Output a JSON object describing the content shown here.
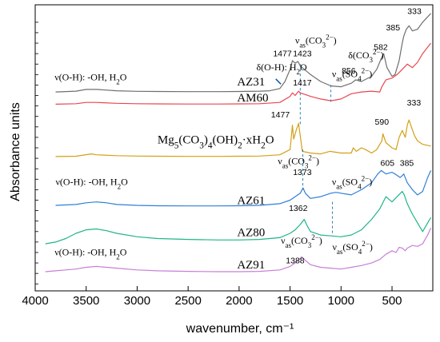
{
  "chart_data": {
    "type": "line",
    "xlabel": "wavenumber, cm⁻¹",
    "ylabel": "Absorbance units",
    "xlim": [
      4000,
      100
    ],
    "x_reversed": true,
    "x_ticks": [
      4000,
      3500,
      3000,
      2500,
      2000,
      1500,
      1000,
      500
    ],
    "y_ticks_labeled": false,
    "grid": false,
    "legend": "none",
    "series": [
      {
        "name": "AZ31",
        "color": "#6e6e6e",
        "x": [
          3800,
          3600,
          3500,
          3400,
          3200,
          3000,
          2800,
          2500,
          2200,
          2000,
          1800,
          1700,
          1600,
          1550,
          1500,
          1477,
          1450,
          1423,
          1400,
          1300,
          1200,
          1100,
          1000,
          900,
          856,
          800,
          700,
          650,
          600,
          582,
          550,
          500,
          470,
          430,
          400,
          385,
          360,
          333,
          300,
          250,
          200,
          120
        ],
        "y": [
          1.0,
          1.05,
          1.15,
          1.15,
          1.07,
          1.04,
          1.03,
          1.02,
          1.02,
          1.03,
          1.05,
          1.07,
          1.2,
          1.6,
          2.3,
          2.8,
          2.65,
          2.75,
          2.5,
          2.0,
          1.6,
          1.35,
          1.3,
          1.5,
          1.7,
          1.6,
          1.9,
          2.3,
          3.0,
          3.2,
          2.4,
          1.9,
          2.0,
          2.8,
          3.8,
          4.2,
          4.6,
          4.8,
          4.5,
          4.6,
          5.0,
          5.5
        ]
      },
      {
        "name": "AM60",
        "color": "#e8474e",
        "x": [
          3800,
          3600,
          3500,
          3400,
          3200,
          3000,
          2800,
          2500,
          2200,
          2000,
          1800,
          1600,
          1500,
          1477,
          1450,
          1417,
          1400,
          1300,
          1200,
          1100,
          1000,
          900,
          800,
          700,
          620,
          600,
          560,
          500,
          450,
          400,
          350,
          300,
          250,
          200,
          120
        ],
        "y": [
          0.3,
          0.33,
          0.4,
          0.4,
          0.35,
          0.33,
          0.32,
          0.31,
          0.31,
          0.32,
          0.33,
          0.4,
          0.75,
          0.95,
          0.8,
          1.05,
          0.95,
          0.75,
          0.6,
          0.5,
          0.6,
          0.9,
          1.0,
          1.05,
          1.0,
          1.3,
          1.7,
          1.8,
          2.0,
          2.3,
          2.6,
          2.4,
          2.7,
          3.2,
          3.8
        ]
      },
      {
        "name": "Mg5(CO3)4(OH)2·xH2O",
        "color": "#d4a017",
        "x": [
          3800,
          3600,
          3450,
          3400,
          3200,
          3000,
          2800,
          2500,
          2200,
          2000,
          1800,
          1600,
          1500,
          1490,
          1477,
          1465,
          1440,
          1417,
          1400,
          1380,
          1300,
          1200,
          1110,
          1000,
          900,
          880,
          850,
          800,
          760,
          700,
          650,
          600,
          590,
          560,
          500,
          460,
          430,
          400,
          370,
          350,
          333,
          310,
          280,
          250,
          200,
          120
        ],
        "y": [
          -2.7,
          -2.68,
          -2.55,
          -2.6,
          -2.65,
          -2.67,
          -2.68,
          -2.69,
          -2.69,
          -2.68,
          -2.67,
          -2.6,
          -2.3,
          -1.7,
          -0.9,
          -1.7,
          -1.2,
          -0.8,
          -1.5,
          -2.4,
          -2.5,
          -2.55,
          -2.4,
          -2.5,
          -2.5,
          -2.2,
          -2.4,
          -2.2,
          -2.3,
          -2.5,
          -2.3,
          -1.8,
          -1.4,
          -1.9,
          -2.2,
          -2.3,
          -1.6,
          -1.2,
          -1.6,
          -0.9,
          -0.6,
          -1.0,
          -1.5,
          -1.8,
          -2.0,
          -2.1
        ]
      },
      {
        "name": "AZ61",
        "color": "#2f7fd8",
        "x": [
          3800,
          3600,
          3500,
          3400,
          3300,
          3200,
          3000,
          2800,
          2500,
          2200,
          2000,
          1800,
          1600,
          1500,
          1450,
          1400,
          1373,
          1350,
          1300,
          1200,
          1100,
          1050,
          1000,
          900,
          800,
          700,
          640,
          605,
          560,
          500,
          470,
          420,
          400,
          385,
          350,
          300,
          250,
          200,
          150,
          120
        ],
        "y": [
          -5.5,
          -5.45,
          -5.35,
          -5.3,
          -5.35,
          -5.45,
          -5.5,
          -5.52,
          -5.53,
          -5.53,
          -5.52,
          -5.5,
          -5.4,
          -5.2,
          -5.0,
          -4.8,
          -4.5,
          -4.8,
          -5.1,
          -5.0,
          -4.8,
          -4.75,
          -4.8,
          -4.9,
          -4.6,
          -4.2,
          -3.7,
          -3.5,
          -3.7,
          -3.6,
          -3.7,
          -3.9,
          -3.8,
          -3.7,
          -4.2,
          -4.6,
          -4.9,
          -4.7,
          -3.9,
          -3.5
        ]
      },
      {
        "name": "AZ80",
        "color": "#1fb58a",
        "x": [
          3900,
          3800,
          3700,
          3600,
          3500,
          3400,
          3300,
          3200,
          3000,
          2800,
          2500,
          2200,
          2000,
          1800,
          1600,
          1500,
          1450,
          1400,
          1362,
          1330,
          1300,
          1200,
          1100,
          1000,
          900,
          800,
          700,
          620,
          560,
          500,
          450,
          400,
          380,
          350,
          300,
          250,
          200,
          150,
          120
        ],
        "y": [
          -7.7,
          -7.6,
          -7.4,
          -7.1,
          -6.9,
          -6.85,
          -6.95,
          -7.1,
          -7.3,
          -7.4,
          -7.45,
          -7.48,
          -7.48,
          -7.45,
          -7.35,
          -7.1,
          -6.9,
          -6.6,
          -6.3,
          -6.7,
          -7.0,
          -7.2,
          -7.25,
          -7.3,
          -7.2,
          -6.9,
          -6.3,
          -5.7,
          -5.0,
          -5.3,
          -5.0,
          -4.7,
          -4.9,
          -5.4,
          -6.0,
          -6.5,
          -7.0,
          -6.5,
          -6.2
        ]
      },
      {
        "name": "AZ91",
        "color": "#c77fd6",
        "x": [
          3900,
          3800,
          3700,
          3600,
          3500,
          3400,
          3300,
          3200,
          3000,
          2800,
          2500,
          2200,
          2000,
          1800,
          1600,
          1500,
          1450,
          1400,
          1388,
          1360,
          1300,
          1200,
          1100,
          1000,
          900,
          800,
          700,
          620,
          560,
          500,
          460,
          430,
          400,
          370,
          350,
          300,
          250,
          200,
          150,
          120
        ],
        "y": [
          -9.3,
          -9.25,
          -9.2,
          -9.15,
          -9.05,
          -9.0,
          -9.05,
          -9.1,
          -9.2,
          -9.25,
          -9.28,
          -9.3,
          -9.3,
          -9.28,
          -9.2,
          -9.0,
          -8.8,
          -8.55,
          -8.45,
          -8.6,
          -8.9,
          -9.05,
          -9.1,
          -9.15,
          -9.05,
          -8.95,
          -8.8,
          -8.6,
          -8.3,
          -8.1,
          -8.2,
          -7.9,
          -7.95,
          -8.1,
          -7.95,
          -7.8,
          -7.85,
          -7.7,
          -7.2,
          -6.8
        ]
      }
    ],
    "curve_labels": [
      {
        "text": "AZ31",
        "x": 2020,
        "y": 1.38
      },
      {
        "text": "AM60",
        "x": 2020,
        "y": 0.46
      },
      {
        "text": "AZ61",
        "x": 2020,
        "y": -5.42
      },
      {
        "text": "AZ80",
        "x": 2020,
        "y": -7.27
      },
      {
        "text": "AZ91",
        "x": 2020,
        "y": -9.11
      }
    ],
    "formula_label": {
      "x": 2800,
      "y": -1.95,
      "parts": [
        [
          "Mg"
        ],
        [
          "5",
          "sub"
        ],
        [
          "(CO"
        ],
        [
          "3",
          "sub"
        ],
        [
          ")"
        ],
        [
          "4",
          "sub"
        ],
        [
          "(OH)"
        ],
        [
          "2",
          "sub"
        ],
        [
          "·xH"
        ],
        [
          "2",
          "sub"
        ],
        [
          "O"
        ]
      ]
    },
    "annotations": [
      {
        "x": 3810,
        "y": 1.67,
        "parts": [
          [
            "ν(O-H): -OH, H"
          ],
          [
            "2",
            "sub"
          ],
          [
            "O"
          ]
        ]
      },
      {
        "x": 3800,
        "y": -4.33,
        "parts": [
          [
            "ν(O-H): -OH, H"
          ],
          [
            "2",
            "sub"
          ],
          [
            "O"
          ]
        ]
      },
      {
        "x": 3810,
        "y": -8.37,
        "parts": [
          [
            "ν(O-H): -OH, H"
          ],
          [
            "2",
            "sub"
          ],
          [
            "O"
          ]
        ]
      },
      {
        "x": 1830,
        "y": 2.24,
        "parts": [
          [
            "δ(O-H): H"
          ],
          [
            "2",
            "sub"
          ],
          [
            "O"
          ]
        ]
      },
      {
        "x": 1450,
        "y": 3.77,
        "parts": [
          [
            "ν"
          ],
          [
            "as",
            "sub"
          ],
          [
            "(CO"
          ],
          [
            "3",
            "sub"
          ],
          [
            "2−",
            "sup"
          ],
          [
            ")"
          ]
        ]
      },
      {
        "x": 1090,
        "y": 1.85,
        "parts": [
          [
            "ν"
          ],
          [
            "as",
            "sub"
          ],
          [
            "(SO"
          ],
          [
            "4",
            "sub"
          ],
          [
            "2−",
            "sup"
          ],
          [
            ")"
          ]
        ]
      },
      {
        "x": 930,
        "y": 2.92,
        "parts": [
          [
            "δ(CO"
          ],
          [
            "3",
            "sub"
          ],
          [
            "2−",
            "sup"
          ],
          [
            ")"
          ]
        ]
      },
      {
        "x": 1620,
        "y": -3.15,
        "parts": [
          [
            "ν"
          ],
          [
            "as",
            "sub"
          ],
          [
            "(CO"
          ],
          [
            "3",
            "sub"
          ],
          [
            "2−",
            "sup"
          ],
          [
            ")"
          ]
        ]
      },
      {
        "x": 1090,
        "y": -4.33,
        "parts": [
          [
            "ν"
          ],
          [
            "as",
            "sub"
          ],
          [
            "(SO"
          ],
          [
            "4",
            "sub"
          ],
          [
            "2−",
            "sup"
          ],
          [
            ")"
          ]
        ]
      },
      {
        "x": 1590,
        "y": -7.7,
        "parts": [
          [
            "ν"
          ],
          [
            "as",
            "sub"
          ],
          [
            "(CO"
          ],
          [
            "3",
            "sub"
          ],
          [
            "2−",
            "sup"
          ],
          [
            ")"
          ]
        ]
      },
      {
        "x": 1085,
        "y": -8.07,
        "parts": [
          [
            "ν"
          ],
          [
            "as",
            "sub"
          ],
          [
            "(SO"
          ],
          [
            "4",
            "sub"
          ],
          [
            "2−",
            "sup"
          ],
          [
            ")"
          ]
        ]
      }
    ],
    "peak_labels": [
      {
        "text": "1477",
        "x": 1575,
        "y": 3.05
      },
      {
        "text": "1423",
        "x": 1380,
        "y": 3.05
      },
      {
        "text": "856",
        "x": 925,
        "y": 2.06
      },
      {
        "text": "582",
        "x": 610,
        "y": 3.42
      },
      {
        "text": "385",
        "x": 490,
        "y": 4.53
      },
      {
        "text": "333",
        "x": 280,
        "y": 5.48
      },
      {
        "text": "1417",
        "x": 1380,
        "y": 1.38
      },
      {
        "text": "1477",
        "x": 1595,
        "y": -0.46
      },
      {
        "text": "590",
        "x": 600,
        "y": -0.87
      },
      {
        "text": "333",
        "x": 285,
        "y": 0.23
      },
      {
        "text": "1373",
        "x": 1380,
        "y": -3.75
      },
      {
        "text": "605",
        "x": 545,
        "y": -3.22
      },
      {
        "text": "385",
        "x": 355,
        "y": -3.22
      },
      {
        "text": "1362",
        "x": 1420,
        "y": -5.83
      },
      {
        "text": "1388",
        "x": 1450,
        "y": -8.81
      }
    ],
    "dashed_markers": [
      {
        "x": 1400,
        "y1": 2.6,
        "y2": -0.95
      },
      {
        "x": 1375,
        "y1": -2.3,
        "y2": -4.6
      },
      {
        "x": 1100,
        "y1": 1.4,
        "y2": 0.4
      },
      {
        "x": 1085,
        "y1": -5.3,
        "y2": -7.2
      }
    ],
    "pointer": {
      "x1": 1640,
      "y1": 1.75,
      "x2": 1590,
      "y2": 1.45
    }
  }
}
